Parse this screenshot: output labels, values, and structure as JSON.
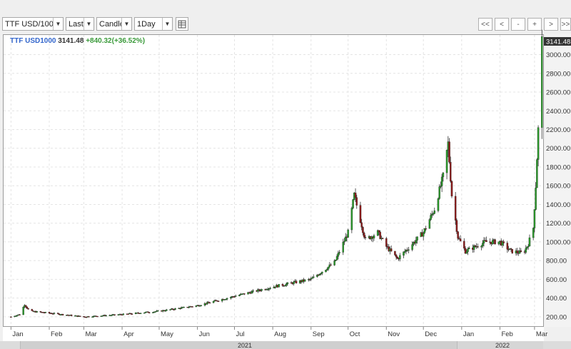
{
  "toolbar": {
    "symbol": "TTF USD/100",
    "price_field": "Last",
    "chart_style": "Candle",
    "interval": "1Day",
    "nav": [
      "<<",
      "<",
      "-",
      "+",
      ">",
      ">>"
    ]
  },
  "legend": {
    "symbol": "TTF USD1000",
    "last": "3141.48",
    "change": "+840.32(+36.52%)"
  },
  "colors": {
    "up": "#2a9a2a",
    "down": "#8b1a1a",
    "legend_symbol": "#3366cc",
    "legend_change": "#3a9a3a",
    "grid": "#e4e4e4"
  },
  "chart_data": {
    "type": "candlestick",
    "title": "",
    "xlabel": "",
    "ylabel": "",
    "ylim": [
      100,
      3210
    ],
    "y_ticks": [
      "200.00",
      "400.00",
      "600.00",
      "800.00",
      "1000.00",
      "1200.00",
      "1400.00",
      "1600.00",
      "1800.00",
      "2000.00",
      "2200.00",
      "2400.00",
      "2600.00",
      "2800.00",
      "3000.00"
    ],
    "last_price_label": "3141.48",
    "x_months": [
      "Jan",
      "Feb",
      "Mar",
      "Apr",
      "May",
      "Jun",
      "Jul",
      "Aug",
      "Sep",
      "Oct",
      "Nov",
      "Dec",
      "Jan",
      "Feb",
      "Mar"
    ],
    "x_years": [
      "2021",
      "2022"
    ],
    "grid": true,
    "legend_position": "top-left",
    "keypoints": [
      [
        "2021-01-01",
        200
      ],
      [
        "2021-01-08",
        225
      ],
      [
        "2021-01-12",
        330
      ],
      [
        "2021-01-16",
        260
      ],
      [
        "2021-02-01",
        240
      ],
      [
        "2021-03-01",
        200
      ],
      [
        "2021-04-01",
        225
      ],
      [
        "2021-05-01",
        260
      ],
      [
        "2021-06-01",
        320
      ],
      [
        "2021-07-01",
        420
      ],
      [
        "2021-08-01",
        520
      ],
      [
        "2021-08-20",
        570
      ],
      [
        "2021-09-01",
        600
      ],
      [
        "2021-09-20",
        780
      ],
      [
        "2021-10-01",
        1100
      ],
      [
        "2021-10-06",
        1500
      ],
      [
        "2021-10-15",
        1020
      ],
      [
        "2021-10-25",
        1100
      ],
      [
        "2021-11-01",
        950
      ],
      [
        "2021-11-10",
        820
      ],
      [
        "2021-11-20",
        950
      ],
      [
        "2021-12-01",
        1100
      ],
      [
        "2021-12-10",
        1350
      ],
      [
        "2021-12-17",
        1700
      ],
      [
        "2021-12-21",
        2050
      ],
      [
        "2021-12-24",
        1500
      ],
      [
        "2021-12-29",
        1050
      ],
      [
        "2022-01-04",
        900
      ],
      [
        "2022-01-12",
        950
      ],
      [
        "2022-01-20",
        1000
      ],
      [
        "2022-02-01",
        1000
      ],
      [
        "2022-02-10",
        900
      ],
      [
        "2022-02-20",
        880
      ],
      [
        "2022-02-24",
        980
      ],
      [
        "2022-02-28",
        1150
      ],
      [
        "2022-03-02",
        1600
      ],
      [
        "2022-03-04",
        2200
      ],
      [
        "2022-03-07",
        3141
      ]
    ]
  }
}
